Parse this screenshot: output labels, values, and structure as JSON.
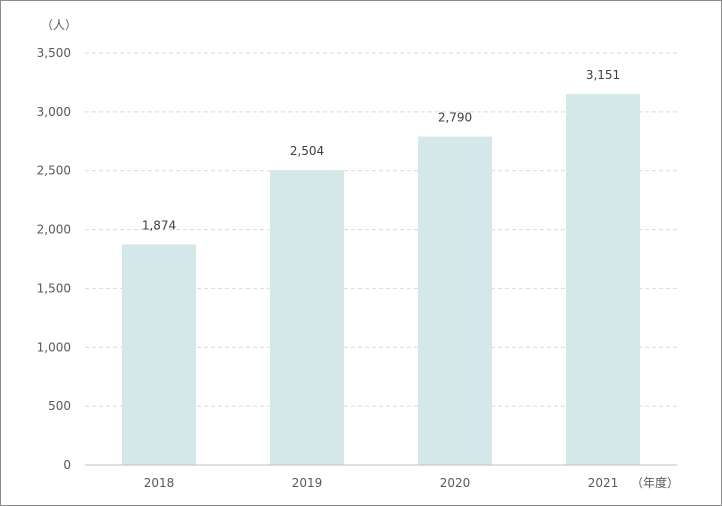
{
  "chart_data": {
    "type": "bar",
    "categories": [
      "2018",
      "2019",
      "2020",
      "2021"
    ],
    "values": [
      1874,
      2504,
      2790,
      3151
    ],
    "data_labels": [
      "1,874",
      "2,504",
      "2,790",
      "3,151"
    ],
    "title": "",
    "xlabel": "（年度）",
    "ylabel": "（人）",
    "ylim": [
      0,
      3500
    ],
    "yticks": [
      0,
      500,
      1000,
      1500,
      2000,
      2500,
      3000,
      3500
    ],
    "ytick_labels": [
      "0",
      "500",
      "1,000",
      "1,500",
      "2,000",
      "2,500",
      "3,000",
      "3,500"
    ],
    "grid": true,
    "bar_color": "#d4e8ea",
    "grid_color": "#d9d9d9"
  }
}
